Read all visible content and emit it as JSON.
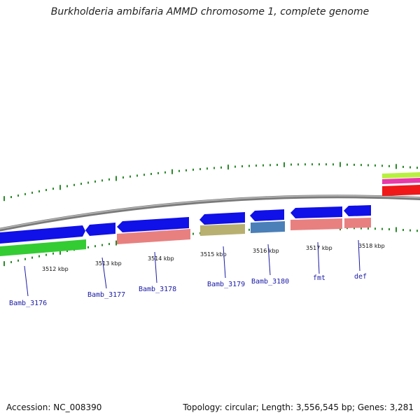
{
  "title": "Burkholderia ambifaria AMMD chromosome 1, complete genome",
  "footer": {
    "accession": "Accession: NC_008390",
    "summary": "Topology: circular; Length: 3,556,545 bp; Genes: 3,281"
  },
  "colors": {
    "backbone": "#8a8a8a",
    "ticks": "#2a8a2a",
    "blue": "#1010e8",
    "green": "#33cc33",
    "pink": "#e88080",
    "olive": "#b8b070",
    "steel": "#4a7fb8",
    "red": "#f01818",
    "magenta": "#e83aa8",
    "lime": "#b8f040",
    "label": "#1a1aa6"
  },
  "scale_labels": [
    "3512 kbp",
    "3513 kbp",
    "3514 kbp",
    "3515 kbp",
    "3516 kbp",
    "3517 kbp",
    "3518 kbp"
  ],
  "genes": [
    {
      "name": "Bamb_3176"
    },
    {
      "name": "Bamb_3177"
    },
    {
      "name": "Bamb_3178"
    },
    {
      "name": "Bamb_3179"
    },
    {
      "name": "Bamb_3180"
    },
    {
      "name": "fmt"
    },
    {
      "name": "def"
    }
  ]
}
